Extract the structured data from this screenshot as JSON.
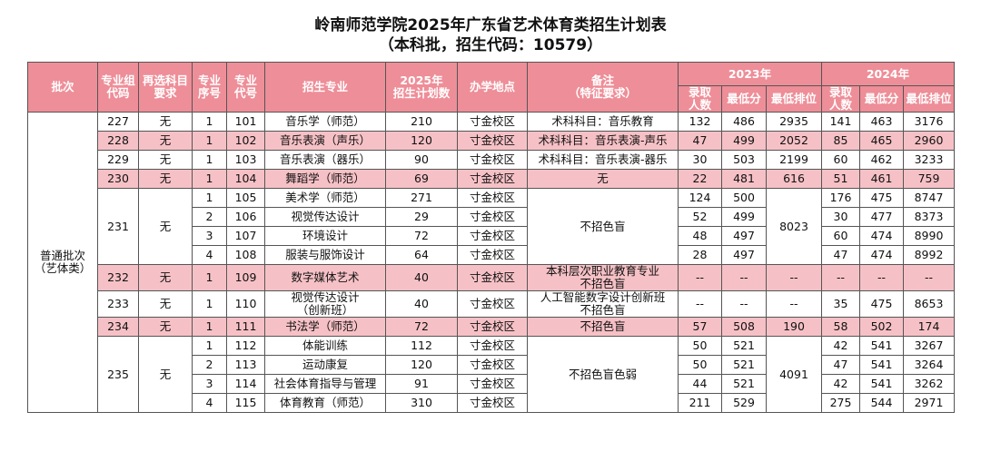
{
  "title": "岭南师范学院2025年广东省艺术体育类招生计划表",
  "subtitle": "（本科批，招生代码：10579）",
  "table": {
    "columns": [
      "批次",
      "专业组\n代码",
      "再选科目\n要求",
      "专业\n序号",
      "专业\n代号",
      "招生专业",
      "2025年\n招生计划数",
      "办学地点",
      "备注\n（特征要求）"
    ],
    "years": [
      {
        "label": "2023年",
        "columns": [
          "录取\n人数",
          "最低分",
          "最低排位"
        ]
      },
      {
        "label": "2024年",
        "columns": [
          "录取\n人数",
          "最低分",
          "最低排位"
        ]
      }
    ],
    "batch": "普通批次\n（艺体类）",
    "groups": [
      {
        "code": 227,
        "requirement": "无",
        "remark": "术科科目：音乐教育",
        "highlight": false,
        "rows": [
          {
            "seq": 1,
            "major_code": 101,
            "major": "音乐学（师范）",
            "plan": 210,
            "campus": "寸金校区",
            "y2023": [
              132,
              486,
              2935
            ],
            "y2024": [
              141,
              463,
              3176
            ]
          }
        ]
      },
      {
        "code": 228,
        "requirement": "无",
        "remark": "术科科目：音乐表演-声乐",
        "highlight": true,
        "rows": [
          {
            "seq": 1,
            "major_code": 102,
            "major": "音乐表演（声乐）",
            "plan": 120,
            "campus": "寸金校区",
            "y2023": [
              47,
              499,
              2052
            ],
            "y2024": [
              85,
              465,
              2960
            ]
          }
        ]
      },
      {
        "code": 229,
        "requirement": "无",
        "remark": "术科科目：音乐表演-器乐",
        "highlight": false,
        "rows": [
          {
            "seq": 1,
            "major_code": 103,
            "major": "音乐表演（器乐）",
            "plan": 90,
            "campus": "寸金校区",
            "y2023": [
              30,
              503,
              2199
            ],
            "y2024": [
              60,
              462,
              3233
            ]
          }
        ]
      },
      {
        "code": 230,
        "requirement": "无",
        "remark": "无",
        "highlight": true,
        "rows": [
          {
            "seq": 1,
            "major_code": 104,
            "major": "舞蹈学（师范）",
            "plan": 69,
            "campus": "寸金校区",
            "y2023": [
              22,
              481,
              616
            ],
            "y2024": [
              51,
              461,
              759
            ]
          }
        ]
      },
      {
        "code": 231,
        "requirement": "无",
        "remark": "不招色盲",
        "rank_2023": 8023,
        "highlight": false,
        "rows": [
          {
            "seq": 1,
            "major_code": 105,
            "major": "美术学（师范）",
            "plan": 271,
            "campus": "寸金校区",
            "y2023": [
              124,
              500
            ],
            "y2024": [
              176,
              475,
              8747
            ]
          },
          {
            "seq": 2,
            "major_code": 106,
            "major": "视觉传达设计",
            "plan": 29,
            "campus": "寸金校区",
            "y2023": [
              52,
              499
            ],
            "y2024": [
              30,
              477,
              8373
            ]
          },
          {
            "seq": 3,
            "major_code": 107,
            "major": "环境设计",
            "plan": 72,
            "campus": "寸金校区",
            "y2023": [
              48,
              497
            ],
            "y2024": [
              60,
              474,
              8990
            ]
          },
          {
            "seq": 4,
            "major_code": 108,
            "major": "服装与服饰设计",
            "plan": 64,
            "campus": "寸金校区",
            "y2023": [
              28,
              497
            ],
            "y2024": [
              47,
              474,
              8992
            ]
          }
        ]
      },
      {
        "code": 232,
        "requirement": "无",
        "remark": "本科层次职业教育专业\n不招色盲",
        "highlight": true,
        "rows": [
          {
            "seq": 1,
            "major_code": 109,
            "major": "数字媒体艺术",
            "plan": 40,
            "campus": "寸金校区",
            "y2023": [
              "--",
              "--",
              "--"
            ],
            "y2024": [
              "--",
              "--",
              "--"
            ]
          }
        ]
      },
      {
        "code": 233,
        "requirement": "无",
        "remark": "人工智能数字设计创新班\n不招色盲",
        "highlight": false,
        "rows": [
          {
            "seq": 1,
            "major_code": 110,
            "major": "视觉传达设计\n（创新班）",
            "plan": 40,
            "campus": "寸金校区",
            "y2023": [
              "--",
              "--",
              "--"
            ],
            "y2024": [
              35,
              475,
              8653
            ]
          }
        ]
      },
      {
        "code": 234,
        "requirement": "无",
        "remark": "不招色盲",
        "highlight": true,
        "rows": [
          {
            "seq": 1,
            "major_code": 111,
            "major": "书法学（师范）",
            "plan": 72,
            "campus": "寸金校区",
            "y2023": [
              57,
              508,
              190
            ],
            "y2024": [
              58,
              502,
              174
            ]
          }
        ]
      },
      {
        "code": 235,
        "requirement": "无",
        "remark": "不招色盲色弱",
        "rank_2023": 4091,
        "highlight": false,
        "rows": [
          {
            "seq": 1,
            "major_code": 112,
            "major": "体能训练",
            "plan": 112,
            "campus": "寸金校区",
            "y2023": [
              50,
              521
            ],
            "y2024": [
              42,
              541,
              3267
            ]
          },
          {
            "seq": 2,
            "major_code": 113,
            "major": "运动康复",
            "plan": 120,
            "campus": "寸金校区",
            "y2023": [
              50,
              521
            ],
            "y2024": [
              47,
              541,
              3264
            ]
          },
          {
            "seq": 3,
            "major_code": 114,
            "major": "社会体育指导与管理",
            "plan": 91,
            "campus": "寸金校区",
            "y2023": [
              44,
              521
            ],
            "y2024": [
              42,
              541,
              3262
            ]
          },
          {
            "seq": 4,
            "major_code": 115,
            "major": "体育教育（师范）",
            "plan": 310,
            "campus": "寸金校区",
            "y2023": [
              211,
              529
            ],
            "y2024": [
              275,
              544,
              2971
            ]
          }
        ]
      }
    ]
  }
}
